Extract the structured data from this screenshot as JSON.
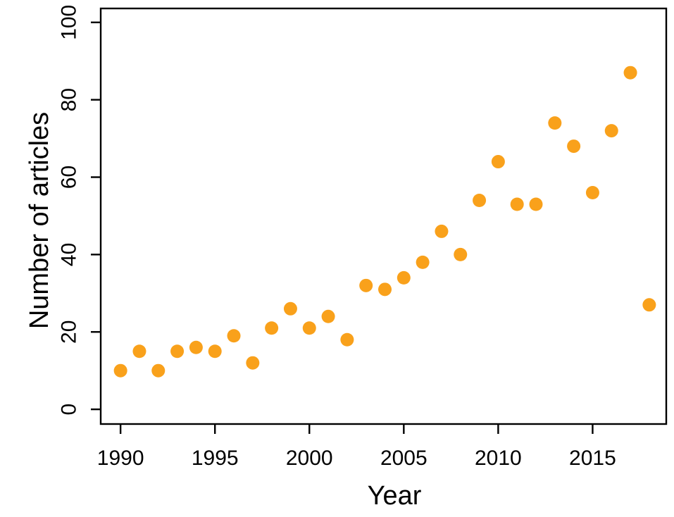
{
  "chart_data": {
    "type": "scatter",
    "title": "",
    "xlabel": "Year",
    "ylabel": "Number of articles",
    "x": [
      1990,
      1991,
      1992,
      1993,
      1994,
      1995,
      1996,
      1997,
      1998,
      1999,
      2000,
      2001,
      2002,
      2003,
      2004,
      2005,
      2006,
      2007,
      2008,
      2009,
      2010,
      2011,
      2012,
      2013,
      2014,
      2015,
      2016,
      2017,
      2018
    ],
    "y": [
      10,
      15,
      10,
      15,
      16,
      15,
      19,
      12,
      21,
      26,
      21,
      24,
      18,
      32,
      31,
      34,
      38,
      46,
      40,
      54,
      64,
      53,
      53,
      74,
      68,
      56,
      72,
      87,
      27
    ],
    "x_ticks": [
      1990,
      1995,
      2000,
      2005,
      2010,
      2015
    ],
    "y_ticks": [
      0,
      20,
      40,
      60,
      80,
      100
    ],
    "xlim": [
      1988.95,
      2018.9
    ],
    "ylim": [
      -3.8,
      103.6
    ],
    "grid": false,
    "legend": false,
    "point_color": "#F9A11B",
    "axis_color": "#000000",
    "background": "#FFFFFF"
  }
}
